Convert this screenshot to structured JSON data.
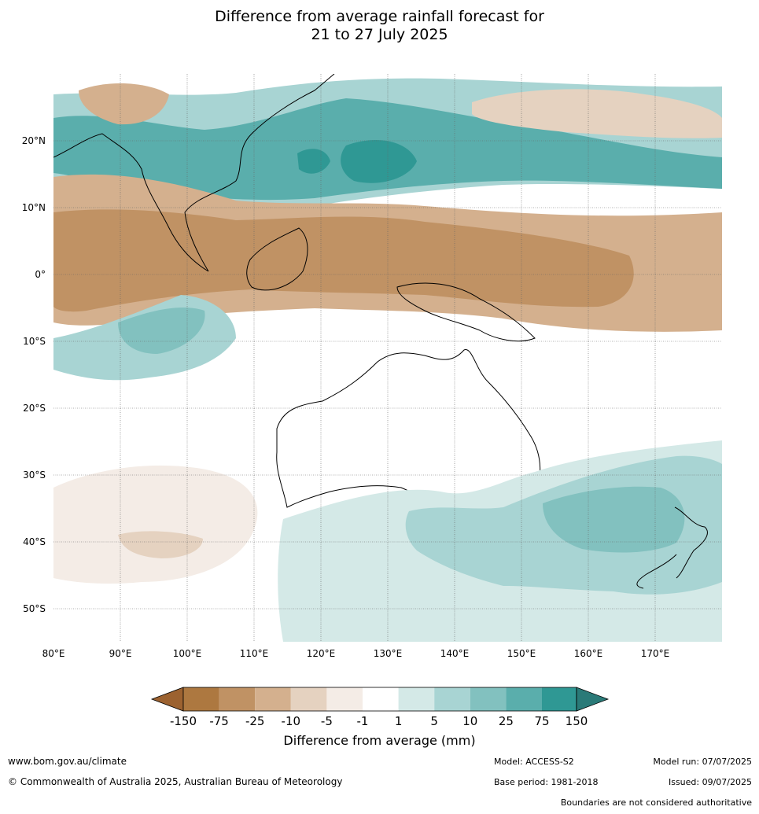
{
  "title": {
    "line1": "Difference from average rainfall forecast for",
    "line2": "21 to 27 July 2025"
  },
  "map": {
    "extent_lon": [
      80,
      180
    ],
    "extent_lat": [
      -55,
      30
    ],
    "lon_ticks": [
      "80°E",
      "90°E",
      "100°E",
      "110°E",
      "120°E",
      "130°E",
      "140°E",
      "150°E",
      "160°E",
      "170°E"
    ],
    "lat_ticks": [
      "20°N",
      "10°N",
      "0°",
      "10°S",
      "20°S",
      "30°S",
      "40°S",
      "50°S"
    ],
    "lat_values": [
      20,
      10,
      0,
      -10,
      -20,
      -30,
      -40,
      -50
    ],
    "lon_values": [
      80,
      90,
      100,
      110,
      120,
      130,
      140,
      150,
      160,
      170
    ]
  },
  "colorbar": {
    "title": "Difference from average (mm)",
    "ticks": [
      "-150",
      "-75",
      "-25",
      "-10",
      "-5",
      "-1",
      "1",
      "5",
      "10",
      "25",
      "75",
      "150"
    ],
    "colors": [
      "#9c6230",
      "#ad7840",
      "#c09264",
      "#d4b08e",
      "#e5d2c0",
      "#f4ece6",
      "#ffffff",
      "#d4e9e7",
      "#a8d4d3",
      "#82c1bf",
      "#5aaeac",
      "#2f9894",
      "#2a7a78"
    ]
  },
  "footer": {
    "website": "www.bom.gov.au/climate",
    "copyright": "© Commonwealth of Australia 2025, Australian Bureau of Meteorology",
    "model": "Model: ACCESS-S2",
    "base_period": "Base period: 1981-2018",
    "model_run": "Model run: 07/07/2025",
    "issued": "Issued: 09/07/2025",
    "disclaimer": "Boundaries are not considered authoritative"
  }
}
